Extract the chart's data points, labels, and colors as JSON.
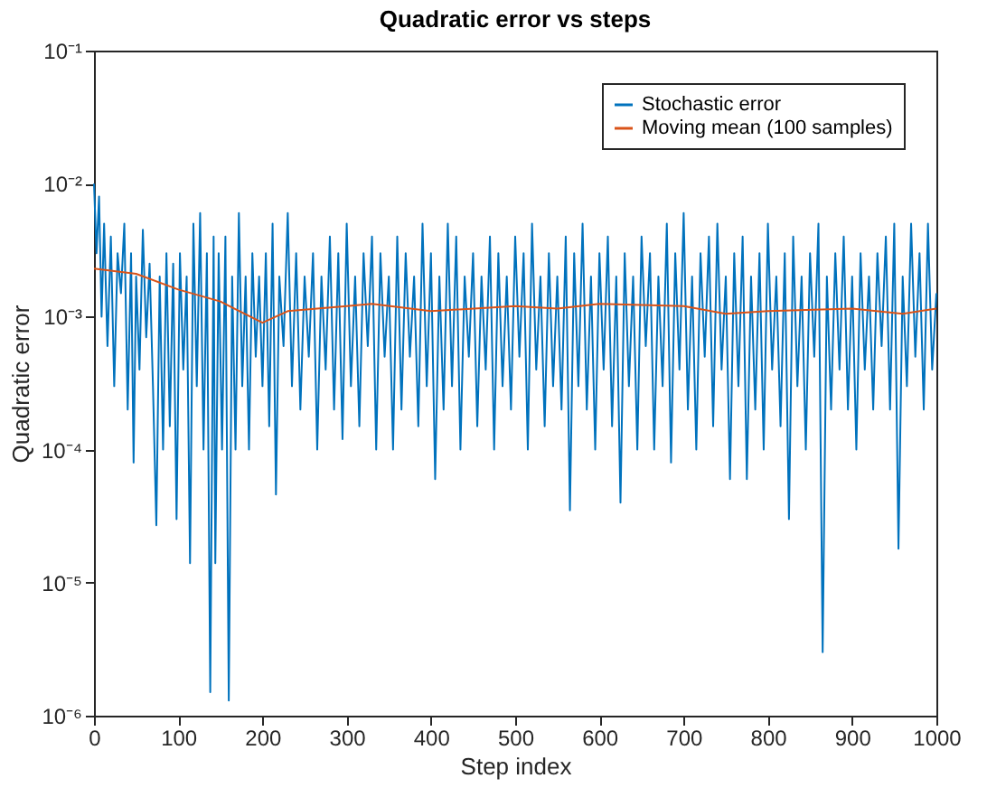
{
  "chart_data": {
    "type": "line",
    "title": "Quadratic error vs steps",
    "xlabel": "Step index",
    "ylabel": "Quadratic error",
    "xlim": [
      0,
      1000
    ],
    "xticks": [
      0,
      100,
      200,
      300,
      400,
      500,
      600,
      700,
      800,
      900,
      1000
    ],
    "ylim": [
      1e-06,
      0.1
    ],
    "yticks": [
      {
        "value": 1e-06,
        "label": "10⁻⁶"
      },
      {
        "value": 1e-05,
        "label": "10⁻⁵"
      },
      {
        "value": 0.0001,
        "label": "10⁻⁴"
      },
      {
        "value": 0.001,
        "label": "10⁻³"
      },
      {
        "value": 0.01,
        "label": "10⁻²"
      },
      {
        "value": 0.1,
        "label": "10⁻¹"
      }
    ],
    "log": "y",
    "grid": false,
    "legend": "top right",
    "marker": "none",
    "line_style": "solid",
    "series": [
      {
        "name": "Stochastic error",
        "color": "#0072bd",
        "x": [
          0,
          3,
          6,
          9,
          12,
          16,
          20,
          24,
          28,
          32,
          36,
          40,
          44,
          47,
          50,
          54,
          58,
          62,
          66,
          70,
          74,
          78,
          82,
          86,
          90,
          94,
          98,
          102,
          106,
          110,
          114,
          118,
          122,
          126,
          130,
          134,
          138,
          142,
          144,
          148,
          152,
          156,
          160,
          164,
          168,
          172,
          176,
          180,
          184,
          188,
          192,
          196,
          200,
          204,
          208,
          212,
          216,
          220,
          225,
          230,
          235,
          240,
          245,
          250,
          255,
          260,
          265,
          270,
          275,
          280,
          285,
          290,
          295,
          300,
          305,
          310,
          315,
          320,
          325,
          330,
          335,
          340,
          345,
          350,
          355,
          360,
          365,
          370,
          375,
          380,
          385,
          390,
          395,
          400,
          405,
          410,
          415,
          420,
          425,
          430,
          435,
          440,
          445,
          450,
          455,
          460,
          465,
          470,
          475,
          480,
          485,
          490,
          495,
          500,
          505,
          510,
          515,
          520,
          525,
          530,
          535,
          540,
          545,
          550,
          555,
          560,
          565,
          570,
          575,
          580,
          585,
          590,
          595,
          600,
          605,
          610,
          615,
          620,
          625,
          630,
          635,
          640,
          645,
          650,
          655,
          660,
          665,
          670,
          675,
          680,
          685,
          690,
          695,
          700,
          705,
          710,
          715,
          720,
          725,
          730,
          735,
          740,
          745,
          750,
          755,
          760,
          765,
          770,
          775,
          780,
          785,
          790,
          795,
          800,
          805,
          810,
          815,
          820,
          825,
          830,
          835,
          840,
          845,
          850,
          855,
          860,
          865,
          870,
          875,
          880,
          885,
          890,
          895,
          900,
          905,
          910,
          915,
          920,
          925,
          930,
          935,
          940,
          945,
          950,
          955,
          960,
          965,
          970,
          975,
          980,
          985,
          990,
          995,
          1000
        ],
        "values": [
          0.01,
          0.003,
          0.008,
          0.001,
          0.005,
          0.0006,
          0.004,
          0.0003,
          0.003,
          0.0015,
          0.005,
          0.0002,
          0.003,
          8e-05,
          0.002,
          0.0004,
          0.0045,
          0.0007,
          0.0025,
          0.0003,
          2.7e-05,
          0.002,
          0.0001,
          0.003,
          0.00015,
          0.0025,
          3e-05,
          0.003,
          0.0004,
          0.002,
          1.4e-05,
          0.005,
          0.0003,
          0.006,
          0.0001,
          0.003,
          1.5e-06,
          0.004,
          1.4e-05,
          0.003,
          0.0001,
          0.004,
          1.3e-06,
          0.002,
          0.0001,
          0.006,
          0.0003,
          0.002,
          0.0001,
          0.003,
          0.0005,
          0.002,
          0.0003,
          0.003,
          0.00015,
          0.005,
          4.6e-05,
          0.002,
          0.0006,
          0.006,
          0.0003,
          0.003,
          0.0002,
          0.002,
          0.0005,
          0.003,
          0.0001,
          0.002,
          0.0004,
          0.004,
          0.0002,
          0.003,
          0.00012,
          0.005,
          0.0003,
          0.002,
          0.00015,
          0.003,
          0.0006,
          0.004,
          0.0001,
          0.003,
          0.0005,
          0.002,
          0.0001,
          0.004,
          0.0002,
          0.003,
          0.0005,
          0.002,
          0.00015,
          0.005,
          0.0003,
          0.003,
          6e-05,
          0.002,
          0.0002,
          0.005,
          0.0003,
          0.004,
          0.0001,
          0.002,
          0.0005,
          0.003,
          0.00015,
          0.002,
          0.0004,
          0.004,
          0.0001,
          0.003,
          0.0003,
          0.002,
          0.0002,
          0.004,
          0.0005,
          0.003,
          0.0001,
          0.005,
          0.0004,
          0.002,
          0.00015,
          0.003,
          0.0003,
          0.002,
          0.0002,
          0.004,
          3.5e-05,
          0.003,
          0.0003,
          0.005,
          0.0002,
          0.002,
          0.0001,
          0.003,
          0.0004,
          0.004,
          0.00015,
          0.002,
          4e-05,
          0.003,
          0.0003,
          0.002,
          0.0001,
          0.004,
          0.0006,
          0.003,
          0.0001,
          0.002,
          0.0003,
          0.005,
          8e-05,
          0.003,
          0.0004,
          0.006,
          0.0002,
          0.002,
          0.0001,
          0.003,
          0.0005,
          0.004,
          0.00015,
          0.005,
          0.0004,
          0.002,
          6e-05,
          0.003,
          0.0003,
          0.004,
          6e-05,
          0.002,
          0.0002,
          0.003,
          0.0001,
          0.005,
          0.0004,
          0.002,
          0.00015,
          0.003,
          3e-05,
          0.004,
          0.0003,
          0.002,
          0.0001,
          0.003,
          0.0005,
          0.005,
          3e-06,
          0.002,
          0.0002,
          0.003,
          0.0004,
          0.004,
          0.0002,
          0.002,
          0.0001,
          0.003,
          0.0004,
          0.002,
          0.0002,
          0.003,
          0.0006,
          0.004,
          0.0002,
          0.005,
          1.8e-05,
          0.002,
          0.0003,
          0.005,
          0.0005,
          0.003,
          0.0002,
          0.005,
          0.0004,
          0.0015
        ]
      },
      {
        "name": "Moving mean (100 samples)",
        "color": "#d95319",
        "x": [
          0,
          50,
          100,
          150,
          200,
          230,
          300,
          330,
          400,
          500,
          550,
          600,
          700,
          750,
          800,
          900,
          960,
          1000
        ],
        "values": [
          0.0023,
          0.0021,
          0.0016,
          0.0013,
          0.0009,
          0.0011,
          0.0012,
          0.00125,
          0.0011,
          0.0012,
          0.00115,
          0.00125,
          0.0012,
          0.00105,
          0.0011,
          0.00115,
          0.00105,
          0.00115
        ]
      }
    ]
  }
}
